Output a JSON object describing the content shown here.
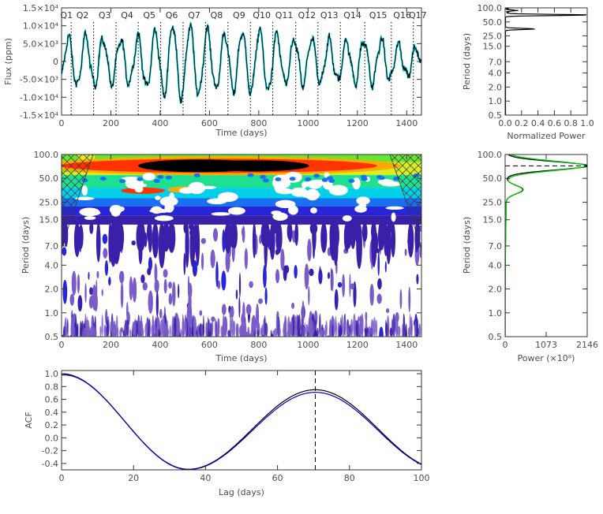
{
  "chart_data": [
    {
      "id": "lightcurve",
      "type": "line",
      "xlabel": "Time (days)",
      "ylabel": "Flux (ppm)",
      "xlim": [
        0,
        1460
      ],
      "ylim": [
        -15000,
        15000
      ],
      "x_ticks": [
        0,
        200,
        400,
        600,
        800,
        1000,
        1200,
        1400
      ],
      "y_ticks": [
        -15000,
        -10000,
        -5000,
        0,
        5000,
        10000,
        15000
      ],
      "y_tick_labels": [
        "-1.5×10⁴",
        "-1.0×10⁴",
        "-5.0×10³",
        "0",
        "5.0×10³",
        "1.0×10⁴",
        "1.5×10⁴"
      ],
      "period_days": 70.5,
      "quarter_boundaries": [
        39,
        130,
        221,
        311,
        402,
        493,
        584,
        675,
        766,
        857,
        950,
        1040,
        1131,
        1230,
        1338,
        1427
      ],
      "quarter_labels": [
        {
          "label": "Q1",
          "x": 20
        },
        {
          "label": "Q2",
          "x": 85
        },
        {
          "label": "Q3",
          "x": 175
        },
        {
          "label": "Q4",
          "x": 266
        },
        {
          "label": "Q5",
          "x": 356
        },
        {
          "label": "Q6",
          "x": 447
        },
        {
          "label": "Q7",
          "x": 538
        },
        {
          "label": "Q8",
          "x": 629
        },
        {
          "label": "Q9",
          "x": 720
        },
        {
          "label": "Q10",
          "x": 812
        },
        {
          "label": "Q11",
          "x": 903
        },
        {
          "label": "Q12",
          "x": 995
        },
        {
          "label": "Q13",
          "x": 1086
        },
        {
          "label": "Q14",
          "x": 1180
        },
        {
          "label": "Q15",
          "x": 1284
        },
        {
          "label": "Q16",
          "x": 1382
        },
        {
          "label": "Q17",
          "x": 1445
        }
      ],
      "colors": {
        "data": "#000000",
        "model": "#00e5ee"
      }
    },
    {
      "id": "gps",
      "type": "line",
      "xlabel": "Normalized Power",
      "ylabel": "Period (days)",
      "xlim": [
        0,
        1
      ],
      "ylim": [
        0.5,
        100
      ],
      "y_scale": "log",
      "x_ticks": [
        0,
        0.2,
        0.4,
        0.6,
        0.8,
        1.0
      ],
      "x_tick_labels": [
        "0.0",
        "0.2",
        "0.4",
        "0.6",
        "0.8",
        "1.0"
      ],
      "y_ticks": [
        0.5,
        1.0,
        2.0,
        4.0,
        7.0,
        15.0,
        25.0,
        50.0,
        100.0
      ],
      "y_tick_labels": [
        "0.5",
        "1.0",
        "2.0",
        "4.0",
        "7.0",
        "15.0",
        "25.0",
        "50.0",
        "100.0"
      ],
      "peaks": [
        {
          "period": 70.5,
          "power": 1.0,
          "width": 0.03
        },
        {
          "period": 35.3,
          "power": 0.35,
          "width": 0.03
        },
        {
          "period": 88,
          "power": 0.12,
          "width": 0.02
        }
      ],
      "colors": {
        "line": "#000000"
      }
    },
    {
      "id": "wavelet",
      "type": "heatmap",
      "xlabel": "Time (days)",
      "ylabel": "Period (days)",
      "xlim": [
        0,
        1460
      ],
      "ylim": [
        0.5,
        100
      ],
      "y_scale": "log",
      "x_ticks": [
        0,
        200,
        400,
        600,
        800,
        1000,
        1200,
        1400
      ],
      "y_ticks": [
        0.5,
        1.0,
        2.0,
        4.0,
        7.0,
        15.0,
        25.0,
        50.0,
        100.0
      ],
      "y_tick_labels": [
        "0.5",
        "1.0",
        "2.0",
        "4.0",
        "7.0",
        "15.0",
        "25.0",
        "50.0",
        "100.0"
      ],
      "colormap": [
        "#ffffff",
        "#7a5cc8",
        "#3a1fa8",
        "#2626d8",
        "#1a70f0",
        "#00d0e8",
        "#1ee090",
        "#66e633",
        "#d8ee20",
        "#ffaa00",
        "#ff3300",
        "#000000"
      ]
    },
    {
      "id": "global_wavelet",
      "type": "line",
      "xlabel": "Power (×10⁸)",
      "ylabel": "Period (days)",
      "xlim": [
        0,
        2146
      ],
      "ylim": [
        0.5,
        100
      ],
      "y_scale": "log",
      "x_ticks": [
        0,
        1073,
        2146
      ],
      "x_tick_labels": [
        "0",
        "1073",
        "2146"
      ],
      "y_ticks": [
        0.5,
        1.0,
        2.0,
        4.0,
        7.0,
        15.0,
        25.0,
        50.0,
        100.0
      ],
      "y_tick_labels": [
        "0.5",
        "1.0",
        "2.0",
        "4.0",
        "7.0",
        "15.0",
        "25.0",
        "50.0",
        "100.0"
      ],
      "peak_period": 72,
      "colors": {
        "power": "#000000",
        "fit": "#00cc00"
      }
    },
    {
      "id": "acf",
      "type": "line",
      "xlabel": "Lag (days)",
      "ylabel": "ACF",
      "xlim": [
        0,
        100
      ],
      "ylim": [
        -0.5,
        1.05
      ],
      "x_ticks": [
        0,
        20,
        40,
        60,
        80,
        100
      ],
      "y_ticks": [
        -0.4,
        -0.2,
        0.0,
        0.2,
        0.4,
        0.6,
        0.8,
        1.0
      ],
      "y_tick_labels": [
        "-0.4",
        "-0.2",
        "0.0",
        "0.2",
        "0.4",
        "0.6",
        "0.8",
        "1.0"
      ],
      "peak_lag": 70.5,
      "series": [
        {
          "color": "#000000",
          "min": -0.49,
          "peak": 0.75
        },
        {
          "color": "#0000cc",
          "min": -0.495,
          "peak": 0.71
        }
      ]
    }
  ]
}
